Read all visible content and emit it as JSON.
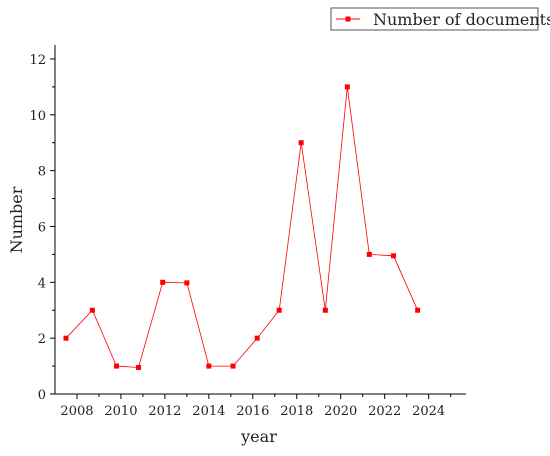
{
  "chart_data": {
    "type": "line",
    "title": "",
    "xlabel": "year",
    "ylabel": "Number",
    "xlim": [
      2007.0,
      2025.7
    ],
    "ylim": [
      0,
      12.5
    ],
    "xticks": [
      2008,
      2010,
      2012,
      2014,
      2016,
      2018,
      2020,
      2022,
      2024
    ],
    "yticks": [
      0,
      2,
      4,
      6,
      8,
      10,
      12
    ],
    "grid": false,
    "legend_position": "top-right",
    "series": [
      {
        "name": "Number of documents",
        "color": "#ff0000",
        "marker": "square",
        "x": [
          2007.5,
          2008.7,
          2009.8,
          2010.8,
          2011.9,
          2013.0,
          2014.0,
          2015.1,
          2016.2,
          2017.2,
          2018.2,
          2019.3,
          2020.3,
          2021.3,
          2022.4,
          2023.5
        ],
        "y": [
          2,
          3,
          1,
          0.95,
          4,
          3.98,
          1,
          1,
          2,
          3,
          9,
          3,
          11,
          5,
          4.95,
          3
        ]
      }
    ]
  }
}
